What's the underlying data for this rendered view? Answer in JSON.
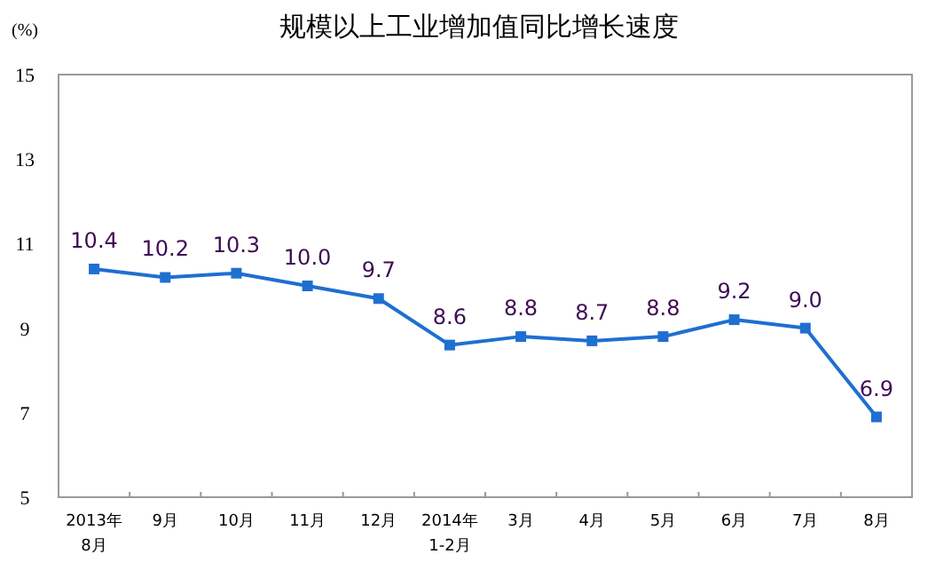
{
  "chart_data": {
    "type": "line",
    "title": "规模以上工业增加值同比增长速度",
    "ylabel": "(%)",
    "categories": [
      "2013年\n8月",
      "9月",
      "10月",
      "11月",
      "12月",
      "2014年\n1-2月",
      "3月",
      "4月",
      "5月",
      "6月",
      "7月",
      "8月"
    ],
    "values": [
      10.4,
      10.2,
      10.3,
      10.0,
      9.7,
      8.6,
      8.8,
      8.7,
      8.8,
      9.2,
      9.0,
      6.9
    ],
    "color": "#1f6fd0",
    "ylim": [
      5,
      15
    ],
    "yticks": [
      5,
      7,
      9,
      11,
      13,
      15
    ],
    "value_labels": [
      "10.4",
      "10.2",
      "10.3",
      "10.0",
      "9.7",
      "8.6",
      "8.8",
      "8.7",
      "8.8",
      "9.2",
      "9.0",
      "6.9"
    ],
    "marker": "square"
  }
}
